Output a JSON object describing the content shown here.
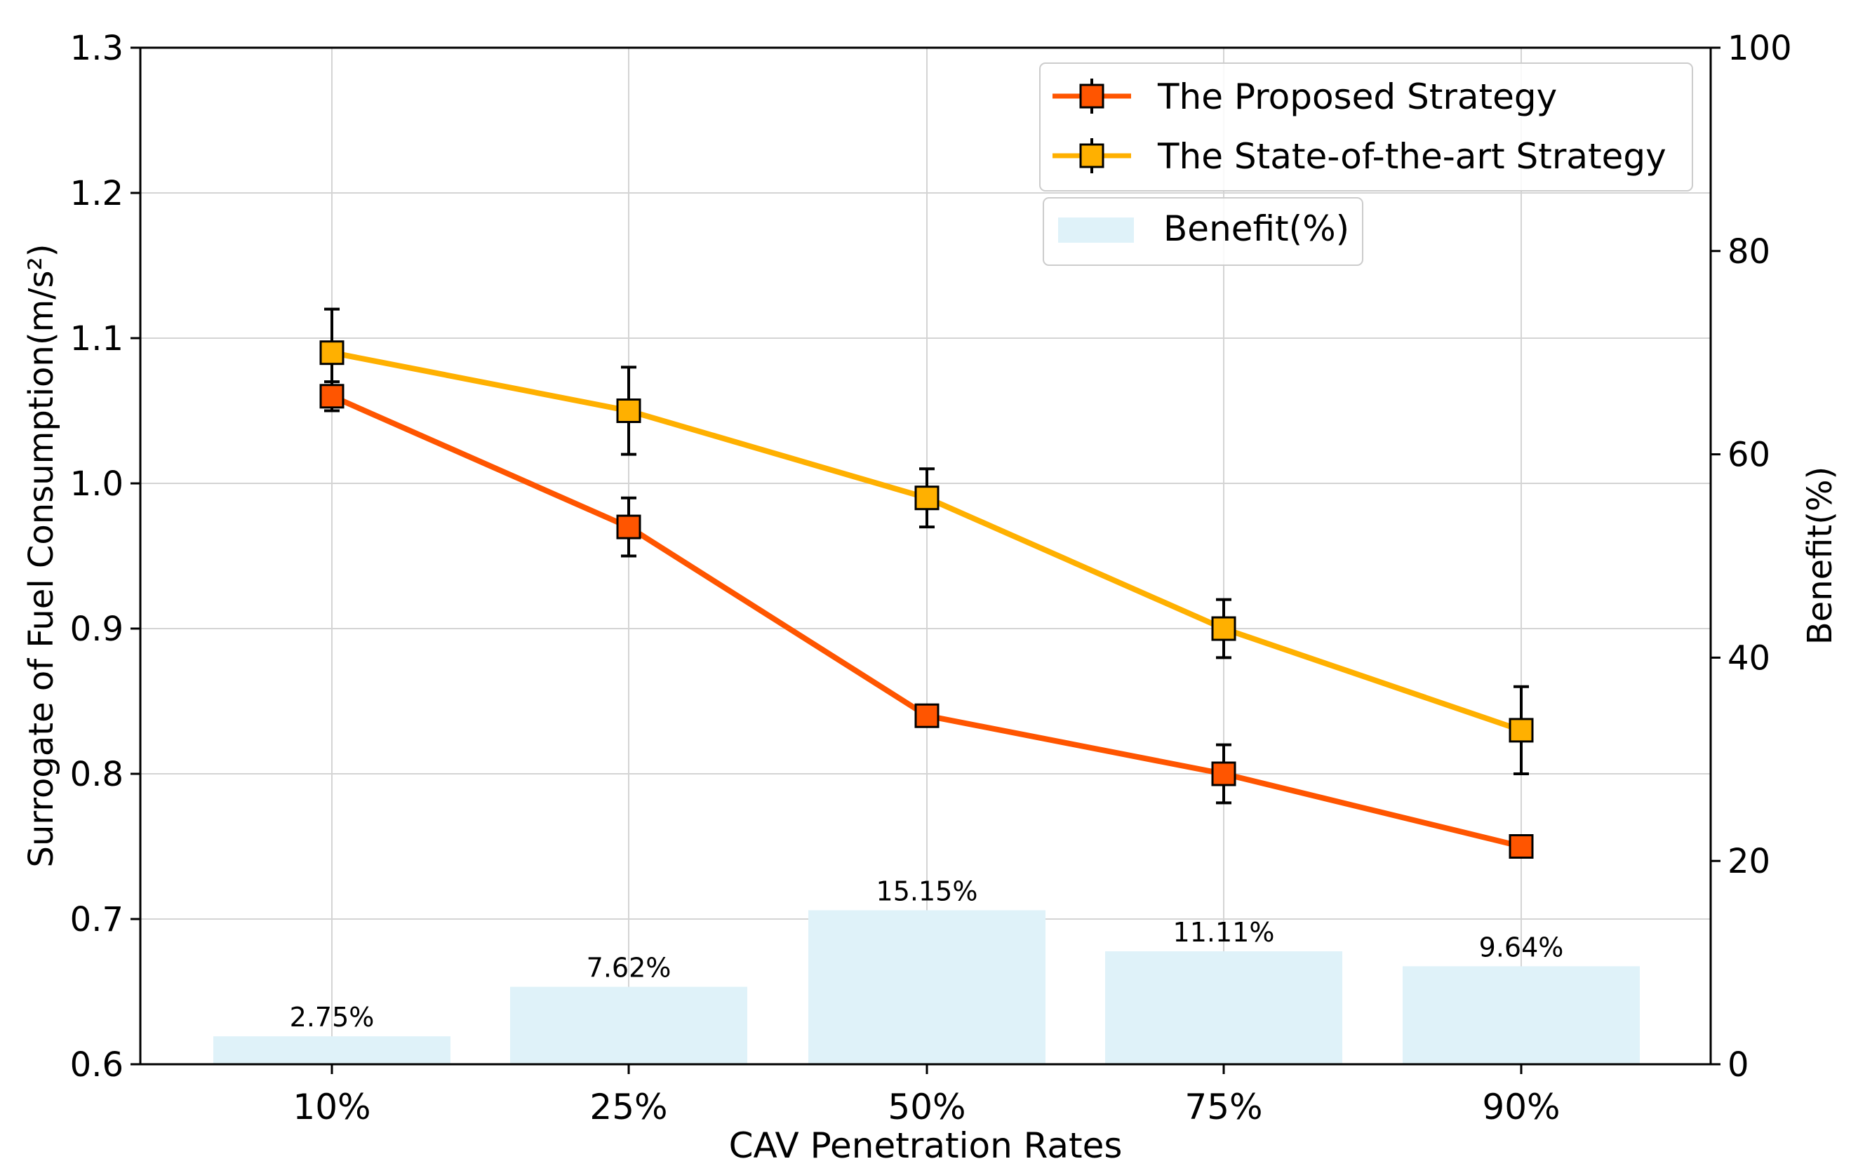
{
  "chart_data": {
    "type": "line",
    "categories": [
      "10%",
      "25%",
      "50%",
      "75%",
      "90%"
    ],
    "xlabel": "CAV Penetration Rates",
    "ylabel": "Surrogate of Fuel Consumption(m/s²)",
    "ylabel_right": "Benefit(%)",
    "ylim": [
      0.6,
      1.3
    ],
    "yticks": [
      "0.6",
      "0.7",
      "0.8",
      "0.9",
      "1.0",
      "1.1",
      "1.2",
      "1.3"
    ],
    "ylim_right": [
      0,
      100
    ],
    "yticks_right": [
      "0",
      "20",
      "40",
      "60",
      "80",
      "100"
    ],
    "grid": true,
    "series": [
      {
        "name": "The Proposed Strategy",
        "color": "#ff5500",
        "values": [
          1.06,
          0.97,
          0.84,
          0.8,
          0.75
        ],
        "errors": [
          0.01,
          0.02,
          0.005,
          0.02,
          0.005
        ]
      },
      {
        "name": "The State-of-the-art Strategy",
        "color": "#ffb000",
        "values": [
          1.09,
          1.05,
          0.99,
          0.9,
          0.83
        ],
        "errors": [
          0.03,
          0.03,
          0.02,
          0.02,
          0.03
        ]
      }
    ],
    "bars": {
      "name": "Benefit(%)",
      "color": "#dff2f9",
      "values": [
        2.75,
        7.62,
        15.15,
        11.11,
        9.64
      ],
      "labels": [
        "2.75%",
        "7.62%",
        "15.15%",
        "11.11%",
        "9.64%"
      ],
      "axis": "right"
    },
    "legend_placement": "top-right"
  }
}
